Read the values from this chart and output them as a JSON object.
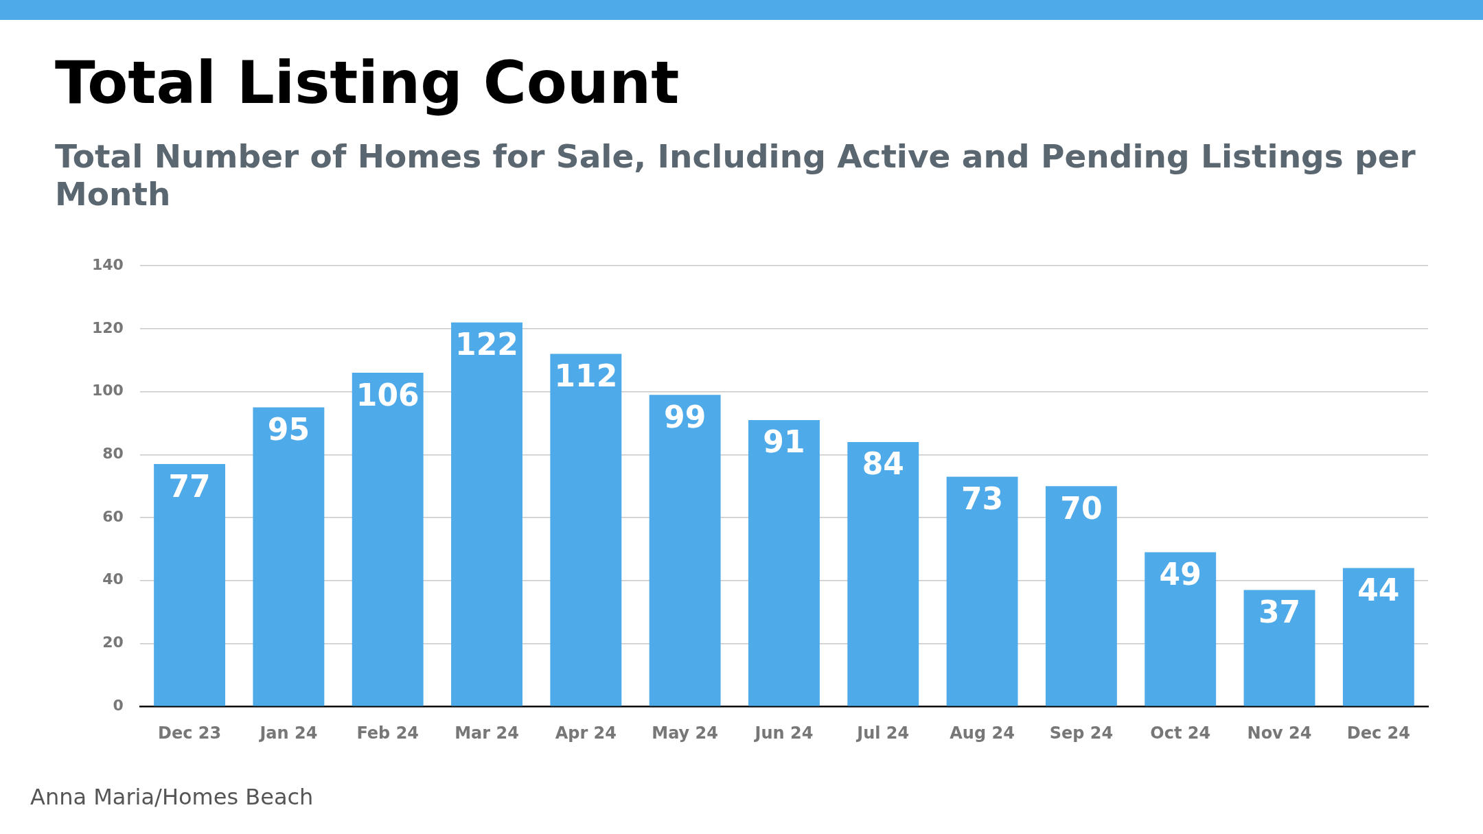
{
  "chart_data": {
    "type": "bar",
    "title": "Total Listing Count",
    "subtitle": "Total Number of Homes for Sale, Including Active and Pending Listings per Month",
    "categories": [
      "Dec 23",
      "Jan 24",
      "Feb 24",
      "Mar 24",
      "Apr 24",
      "May 24",
      "Jun 24",
      "Jul 24",
      "Aug 24",
      "Sep 24",
      "Oct 24",
      "Nov 24",
      "Dec 24"
    ],
    "values": [
      77,
      95,
      106,
      122,
      112,
      99,
      91,
      84,
      73,
      70,
      49,
      37,
      44
    ],
    "color": "#4eaae8",
    "ylim": [
      0,
      140
    ],
    "yticks": [
      0,
      20,
      40,
      60,
      80,
      100,
      120,
      140
    ],
    "grid": "y",
    "data_labels": true,
    "annotations": [
      "Anna Maria/Homes Beach"
    ]
  }
}
